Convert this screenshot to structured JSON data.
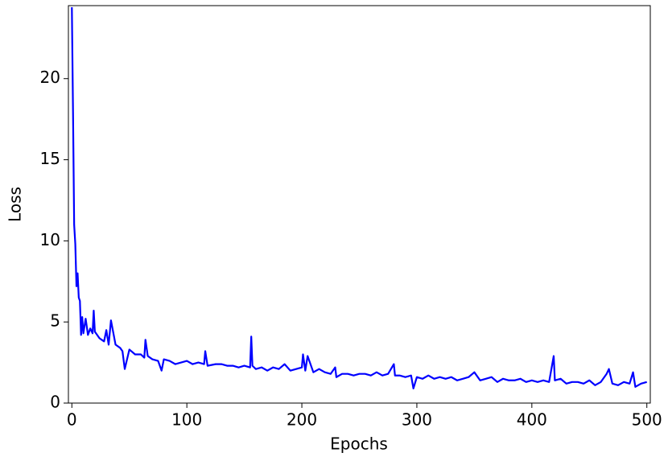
{
  "chart_data": {
    "type": "line",
    "xlabel": "Epochs",
    "ylabel": "Loss",
    "color": "#0000ff",
    "xlim": [
      -3,
      503
    ],
    "ylim": [
      0,
      24.5
    ],
    "xticks": [
      0,
      100,
      200,
      300,
      400,
      500
    ],
    "yticks": [
      0,
      5,
      10,
      15,
      20
    ],
    "x": [
      0,
      1,
      2,
      3,
      4,
      5,
      6,
      7,
      8,
      9,
      10,
      12,
      14,
      16,
      18,
      19,
      20,
      24,
      28,
      30,
      32,
      34,
      38,
      42,
      44,
      46,
      50,
      55,
      60,
      63,
      64,
      66,
      70,
      75,
      78,
      80,
      85,
      90,
      95,
      100,
      105,
      110,
      115,
      116,
      118,
      125,
      130,
      135,
      140,
      145,
      150,
      155,
      156,
      157,
      160,
      165,
      170,
      175,
      180,
      185,
      190,
      195,
      200,
      201,
      203,
      205,
      210,
      215,
      220,
      225,
      229,
      230,
      235,
      240,
      245,
      250,
      255,
      260,
      265,
      270,
      275,
      280,
      281,
      285,
      290,
      295,
      297,
      300,
      305,
      310,
      315,
      320,
      325,
      330,
      335,
      340,
      345,
      350,
      355,
      360,
      365,
      370,
      375,
      380,
      385,
      390,
      395,
      400,
      405,
      410,
      415,
      419,
      420,
      425,
      430,
      435,
      440,
      445,
      450,
      455,
      460,
      465,
      467,
      470,
      475,
      480,
      485,
      488,
      490,
      495,
      500
    ],
    "values": [
      24.4,
      18,
      11,
      9.8,
      7.2,
      8,
      6.5,
      6.3,
      4.2,
      5.3,
      4.3,
      5.2,
      4.2,
      4.6,
      4.3,
      5.7,
      4.4,
      4.0,
      3.8,
      4.5,
      3.6,
      5.1,
      3.6,
      3.4,
      3.2,
      2.1,
      3.3,
      3.0,
      3.0,
      2.8,
      3.9,
      2.9,
      2.7,
      2.6,
      2.0,
      2.7,
      2.6,
      2.4,
      2.5,
      2.6,
      2.4,
      2.5,
      2.4,
      3.2,
      2.3,
      2.4,
      2.4,
      2.3,
      2.3,
      2.2,
      2.3,
      2.2,
      4.1,
      2.3,
      2.1,
      2.2,
      2.0,
      2.2,
      2.1,
      2.4,
      2.0,
      2.1,
      2.2,
      3.0,
      2.0,
      2.9,
      1.9,
      2.1,
      1.9,
      1.8,
      2.2,
      1.6,
      1.8,
      1.8,
      1.7,
      1.8,
      1.8,
      1.7,
      1.9,
      1.7,
      1.8,
      2.4,
      1.7,
      1.7,
      1.6,
      1.7,
      0.9,
      1.6,
      1.5,
      1.7,
      1.5,
      1.6,
      1.5,
      1.6,
      1.4,
      1.5,
      1.6,
      1.9,
      1.4,
      1.5,
      1.6,
      1.3,
      1.5,
      1.4,
      1.4,
      1.5,
      1.3,
      1.4,
      1.3,
      1.4,
      1.3,
      2.9,
      1.4,
      1.5,
      1.2,
      1.3,
      1.3,
      1.2,
      1.4,
      1.1,
      1.3,
      1.8,
      2.1,
      1.2,
      1.1,
      1.3,
      1.2,
      1.9,
      1.0,
      1.2,
      1.3
    ]
  }
}
